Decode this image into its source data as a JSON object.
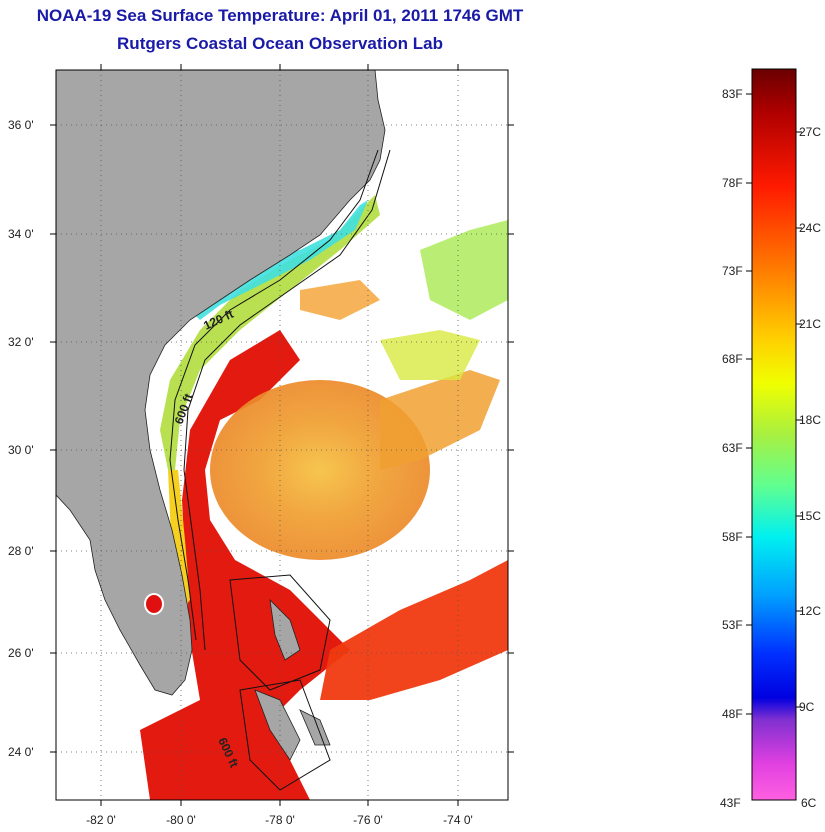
{
  "title": {
    "line1": "NOAA-19 Sea Surface Temperature:  April 01, 2011 1746 GMT",
    "line2": "Rutgers Coastal Ocean Observation Lab"
  },
  "map": {
    "lat_labels": [
      "36 0'",
      "34 0'",
      "32 0'",
      "30 0'",
      "28 0'",
      "26 0'",
      "24 0'"
    ],
    "lon_labels": [
      "-82 0'",
      "-80 0'",
      "-78 0'",
      "-76 0'",
      "-74 0'"
    ],
    "contours": [
      "120 ft",
      "600 ft",
      "600 ft"
    ],
    "colors": {
      "land": "#a6a6a6",
      "water_missing": "#ffffff",
      "gulfstream": "#e01010"
    }
  },
  "colorbar": {
    "fahrenheit": [
      "83F",
      "78F",
      "73F",
      "68F",
      "63F",
      "58F",
      "53F",
      "48F",
      "43F"
    ],
    "celsius": [
      "27C",
      "24C",
      "21C",
      "18C",
      "15C",
      "12C",
      "9C",
      "6C"
    ]
  }
}
